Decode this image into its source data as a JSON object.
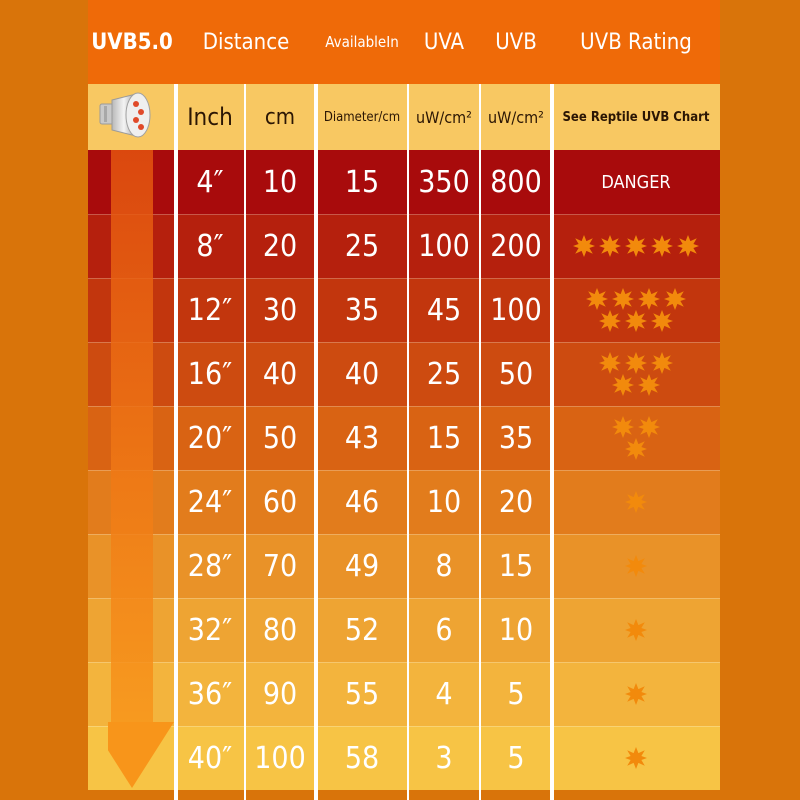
{
  "colors": {
    "background": "#d9740a",
    "header": "#ef6a08",
    "subheader": "#f8c862",
    "star": "#f28a0c",
    "row_colors": [
      "#a80b0c",
      "#b5200d",
      "#c2360d",
      "#cd4b10",
      "#d96313",
      "#e27c1c",
      "#e99228",
      "#eea433",
      "#f3b43d",
      "#f7c445"
    ]
  },
  "header": {
    "uvb": "UVB5.0",
    "distance": "Distance",
    "available": "AvailableIn",
    "uva": "UVA",
    "uvb_col": "UVB",
    "rating": "UVB Rating"
  },
  "subheader": {
    "bulb_icon": "bulb-icon",
    "inch": "Inch",
    "cm": "cm",
    "diameter": "Diameter/cm",
    "uva_unit": "uW/cm²",
    "uvb_unit": "uW/cm²",
    "rating_note": "See Reptile UVB Chart"
  },
  "rows": [
    {
      "inch": "4″",
      "cm": "10",
      "diameter": "15",
      "uva": "350",
      "uvb": "800",
      "rating_text": "DANGER",
      "stars": 0
    },
    {
      "inch": "8″",
      "cm": "20",
      "diameter": "25",
      "uva": "100",
      "uvb": "200",
      "rating_text": "",
      "stars": 5
    },
    {
      "inch": "12″",
      "cm": "30",
      "diameter": "35",
      "uva": "45",
      "uvb": "100",
      "rating_text": "",
      "stars": 7
    },
    {
      "inch": "16″",
      "cm": "40",
      "diameter": "40",
      "uva": "25",
      "uvb": "50",
      "rating_text": "",
      "stars": 5
    },
    {
      "inch": "20″",
      "cm": "50",
      "diameter": "43",
      "uva": "15",
      "uvb": "35",
      "rating_text": "",
      "stars": 3
    },
    {
      "inch": "24″",
      "cm": "60",
      "diameter": "46",
      "uva": "10",
      "uvb": "20",
      "rating_text": "",
      "stars": 1
    },
    {
      "inch": "28″",
      "cm": "70",
      "diameter": "49",
      "uva": "8",
      "uvb": "15",
      "rating_text": "",
      "stars": 1
    },
    {
      "inch": "32″",
      "cm": "80",
      "diameter": "52",
      "uva": "6",
      "uvb": "10",
      "rating_text": "",
      "stars": 1
    },
    {
      "inch": "36″",
      "cm": "90",
      "diameter": "55",
      "uva": "4",
      "uvb": "5",
      "rating_text": "",
      "stars": 1
    },
    {
      "inch": "40″",
      "cm": "100",
      "diameter": "58",
      "uva": "3",
      "uvb": "5",
      "rating_text": "",
      "stars": 1
    }
  ],
  "star_layouts": {
    "0": [],
    "1": [
      1
    ],
    "3": [
      2,
      1
    ],
    "5_row2": [
      5
    ],
    "5": [
      3,
      2
    ],
    "7": [
      4,
      3
    ]
  }
}
